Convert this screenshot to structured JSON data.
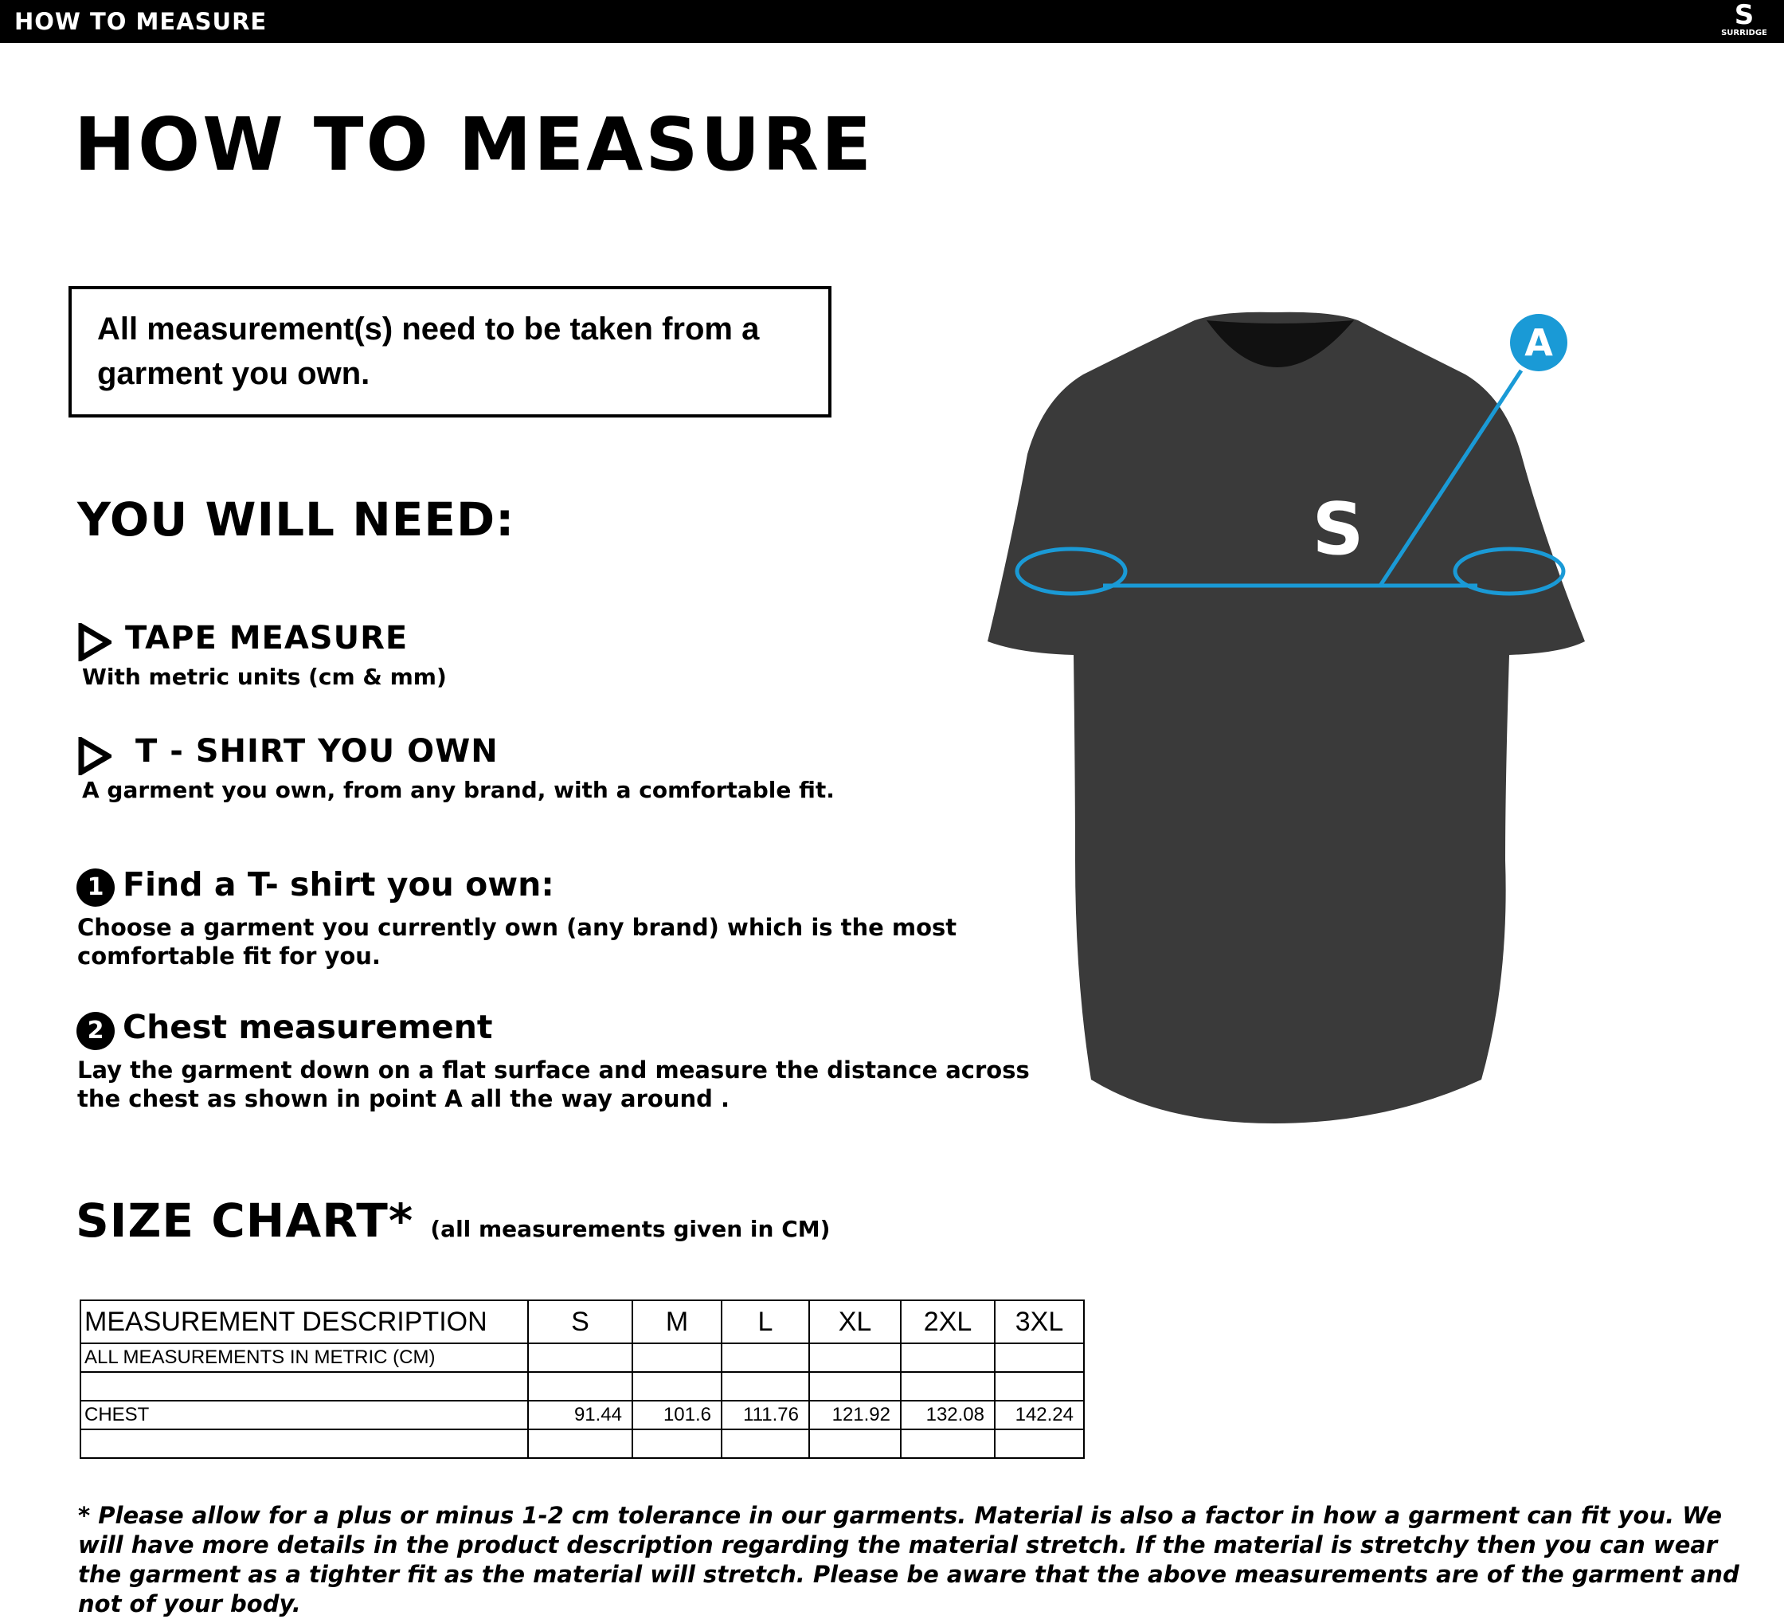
{
  "header": {
    "title": "HOW TO MEASURE",
    "logo_text": "SURRIDGE"
  },
  "page_title": "HOW TO MEASURE",
  "notice": "All measurement(s) need to be taken from a garment you own.",
  "need": {
    "heading": "YOU WILL NEED:",
    "items": [
      {
        "title": "TAPE MEASURE",
        "desc": "With metric units (cm & mm)"
      },
      {
        "title": "T - SHIRT YOU OWN",
        "desc": "A garment you own, from any brand, with a comfortable fit."
      }
    ]
  },
  "steps": [
    {
      "num": "1",
      "title": "Find a T- shirt you own:",
      "desc": "Choose a garment you currently own (any brand) which is the most comfortable fit for you."
    },
    {
      "num": "2",
      "title": "Chest measurement",
      "desc": "Lay the garment down on a flat surface and measure the distance across the chest as shown in point A all the way around ."
    }
  ],
  "diagram": {
    "marker": "A",
    "accent": "#1a9ad6",
    "shirt_color": "#3a3a3a"
  },
  "size_chart": {
    "title": "SIZE CHART*",
    "subtitle": "(all measurements given in CM)",
    "headers": [
      "MEASUREMENT DESCRIPTION",
      "S",
      "M",
      "L",
      "XL",
      "2XL",
      "3XL"
    ],
    "units_row": "ALL MEASUREMENTS IN METRIC (CM)",
    "rows": [
      {
        "label": "CHEST",
        "values": [
          "91.44",
          "101.6",
          "111.76",
          "121.92",
          "132.08",
          "142.24"
        ]
      }
    ]
  },
  "footnote": "* Please allow for a plus or minus 1-2 cm tolerance in our garments. Material is also a factor in how a garment can fit you. We will have more details in the product description regarding the material stretch.  If the material is stretchy then you can wear the garment as a tighter fit as the material will stretch.  Please be aware that the above measurements are of the garment and not of your body."
}
